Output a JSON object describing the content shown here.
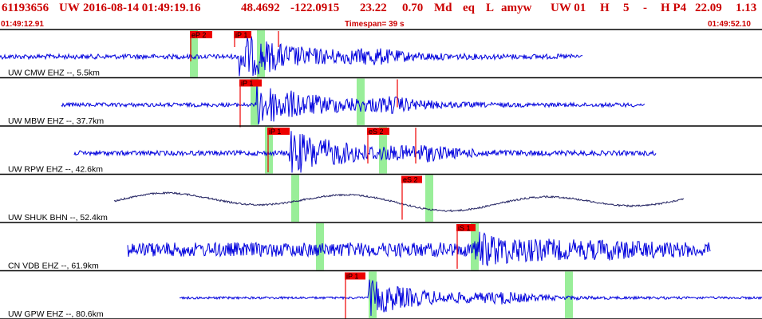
{
  "header": {
    "event_id": "61193656",
    "network": "UW",
    "datetime": "2016-08-14 01:49:19.16",
    "latitude": "48.4692",
    "longitude": "-122.0915",
    "depth": "23.22",
    "magnitude": "0.70",
    "magnitude_type": "Md",
    "event_type": "eq",
    "location_flag": "L",
    "author": "amyw",
    "network_code": "UW 01",
    "quality": "H",
    "num_phases": "5",
    "dash": "-",
    "review": "H P4",
    "gap": "22.09",
    "rms": "1.13"
  },
  "timebar": {
    "start_time": "01:49:12.91",
    "timespan": "Timespan=  39 s",
    "end_time": "01:49:52.10"
  },
  "colors": {
    "title": "#cc0000",
    "trace": "#0000dd",
    "trace_long_period": "#202060",
    "pick_box": "#ee0000",
    "window": "#99ee99",
    "separator": "#000000"
  },
  "traces": [
    {
      "label": "UW CMW EHZ --, 5.5km",
      "data_start": 0,
      "data_end": 730,
      "color": "trace",
      "noise": 3,
      "style": "hf",
      "onset": 300,
      "event_amp": 28,
      "windows": [
        [
          238,
          248
        ],
        [
          322,
          332
        ]
      ],
      "picks": [
        {
          "label": "eP 2",
          "x": 238,
          "lw": 28,
          "down": 38
        },
        {
          "label": "iP 1",
          "x": 293,
          "lw": 22,
          "down": 20
        },
        {
          "label": "",
          "x": 348,
          "lw": 0,
          "down": 20
        }
      ]
    },
    {
      "label": "UW MBW EHZ --, 37.7km",
      "data_start": 77,
      "data_end": 808,
      "color": "trace",
      "noise": 2.5,
      "style": "hf",
      "onset": 322,
      "event_amp": 28,
      "windows": [
        [
          314,
          324
        ],
        [
          447,
          457
        ]
      ],
      "picks": [
        {
          "label": "iP 1",
          "x": 300,
          "lw": 28,
          "down": 60
        },
        {
          "label": "",
          "x": 497,
          "lw": 0,
          "down": 35
        }
      ]
    },
    {
      "label": "UW RPW EHZ --, 42.6km",
      "data_start": 93,
      "data_end": 822,
      "color": "trace",
      "noise": 3,
      "style": "hf",
      "onset": 363,
      "event_amp": 28,
      "windows": [
        [
          332,
          342
        ],
        [
          475,
          485
        ]
      ],
      "picks": [
        {
          "label": "iP 1",
          "x": 335,
          "lw": 28,
          "down": 56
        },
        {
          "label": "eS 2",
          "x": 460,
          "lw": 28,
          "down": 45
        },
        {
          "label": "",
          "x": 520,
          "lw": 0,
          "down": 45
        }
      ]
    },
    {
      "label": "UW SHUK BHN --, 52.4km",
      "data_start": 143,
      "data_end": 857,
      "color": "trace_long_period",
      "noise": 1,
      "style": "lp",
      "onset": -1,
      "event_amp": 0,
      "windows": [
        [
          365,
          375
        ],
        [
          533,
          543
        ]
      ],
      "picks": [
        {
          "label": "eS 2",
          "x": 503,
          "lw": 26,
          "down": 55
        }
      ]
    },
    {
      "label": "CN VDB EHZ --, 61.9km",
      "data_start": 160,
      "data_end": 890,
      "color": "trace",
      "noise": 9,
      "style": "hf",
      "onset": 595,
      "event_amp": 16,
      "windows": [
        [
          396,
          406
        ],
        [
          590,
          600
        ]
      ],
      "picks": [
        {
          "label": "iS 1",
          "x": 572,
          "lw": 24,
          "down": 56
        }
      ]
    },
    {
      "label": "UW GPW EHZ --, 80.6km",
      "data_start": 225,
      "data_end": 955,
      "color": "trace",
      "noise": 1.5,
      "style": "hf",
      "onset": 462,
      "event_amp": 22,
      "windows": [
        [
          462,
          472
        ],
        [
          708,
          718
        ]
      ],
      "picks": [
        {
          "label": "iP 1",
          "x": 432,
          "lw": 26,
          "down": 60
        }
      ]
    }
  ]
}
